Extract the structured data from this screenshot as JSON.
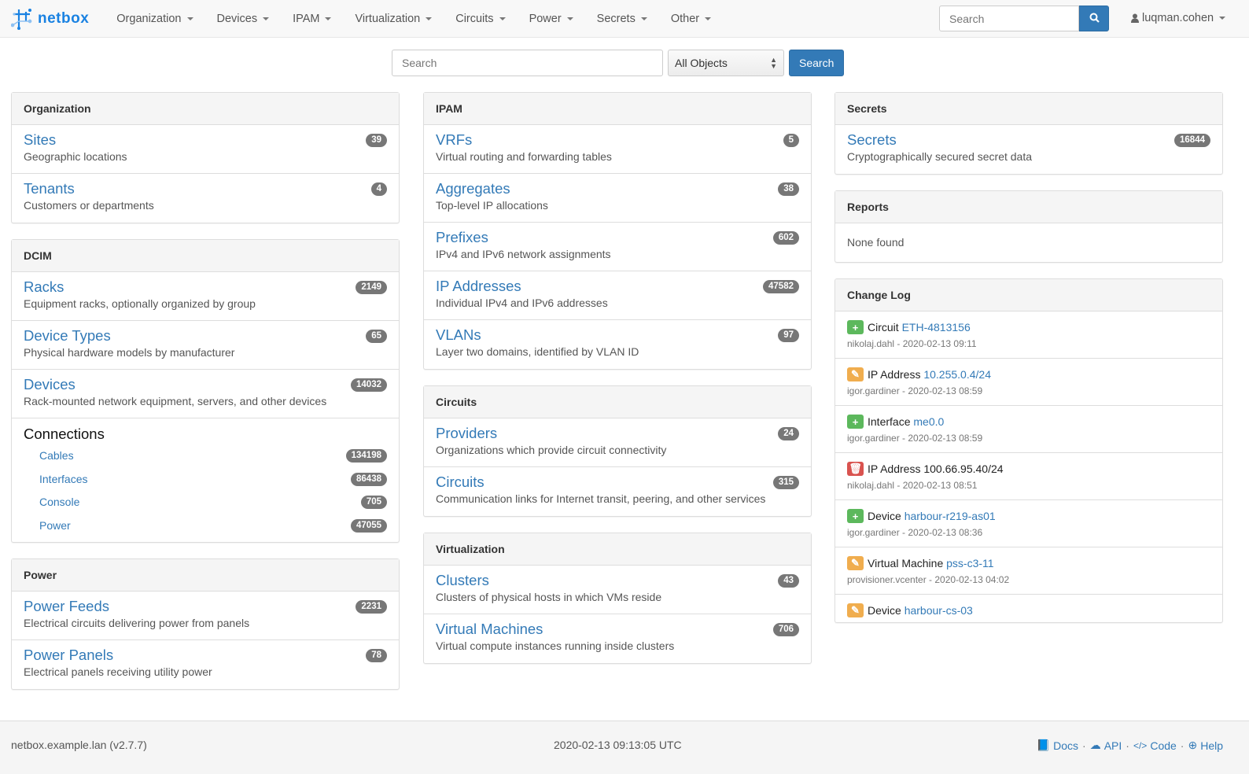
{
  "nav": {
    "brand": "netbox",
    "menu": [
      "Organization",
      "Devices",
      "IPAM",
      "Virtualization",
      "Circuits",
      "Power",
      "Secrets",
      "Other"
    ],
    "search_placeholder": "Search",
    "user": "luqman.cohen"
  },
  "search": {
    "placeholder": "Search",
    "select": "All Objects",
    "button": "Search"
  },
  "columns": [
    [
      {
        "title": "Organization",
        "items": [
          {
            "label": "Sites",
            "desc": "Geographic locations",
            "count": "39"
          },
          {
            "label": "Tenants",
            "desc": "Customers or departments",
            "count": "4"
          }
        ]
      },
      {
        "title": "DCIM",
        "items": [
          {
            "label": "Racks",
            "desc": "Equipment racks, optionally organized by group",
            "count": "2149"
          },
          {
            "label": "Device Types",
            "desc": "Physical hardware models by manufacturer",
            "count": "65"
          },
          {
            "label": "Devices",
            "desc": "Rack-mounted network equipment, servers, and other devices",
            "count": "14032"
          }
        ],
        "connections": {
          "title": "Connections",
          "items": [
            {
              "label": "Cables",
              "count": "134198"
            },
            {
              "label": "Interfaces",
              "count": "86438"
            },
            {
              "label": "Console",
              "count": "705"
            },
            {
              "label": "Power",
              "count": "47055"
            }
          ]
        }
      },
      {
        "title": "Power",
        "items": [
          {
            "label": "Power Feeds",
            "desc": "Electrical circuits delivering power from panels",
            "count": "2231"
          },
          {
            "label": "Power Panels",
            "desc": "Electrical panels receiving utility power",
            "count": "78"
          }
        ]
      }
    ],
    [
      {
        "title": "IPAM",
        "items": [
          {
            "label": "VRFs",
            "desc": "Virtual routing and forwarding tables",
            "count": "5"
          },
          {
            "label": "Aggregates",
            "desc": "Top-level IP allocations",
            "count": "38"
          },
          {
            "label": "Prefixes",
            "desc": "IPv4 and IPv6 network assignments",
            "count": "602"
          },
          {
            "label": "IP Addresses",
            "desc": "Individual IPv4 and IPv6 addresses",
            "count": "47582"
          },
          {
            "label": "VLANs",
            "desc": "Layer two domains, identified by VLAN ID",
            "count": "97"
          }
        ]
      },
      {
        "title": "Circuits",
        "items": [
          {
            "label": "Providers",
            "desc": "Organizations which provide circuit connectivity",
            "count": "24"
          },
          {
            "label": "Circuits",
            "desc": "Communication links for Internet transit, peering, and other services",
            "count": "315"
          }
        ]
      },
      {
        "title": "Virtualization",
        "items": [
          {
            "label": "Clusters",
            "desc": "Clusters of physical hosts in which VMs reside",
            "count": "43"
          },
          {
            "label": "Virtual Machines",
            "desc": "Virtual compute instances running inside clusters",
            "count": "706"
          }
        ]
      }
    ],
    [
      {
        "title": "Secrets",
        "items": [
          {
            "label": "Secrets",
            "desc": "Cryptographically secured secret data",
            "count": "16844"
          }
        ]
      },
      {
        "title": "Reports",
        "none": "None found"
      },
      {
        "title": "Change Log",
        "changes": [
          {
            "action": "create",
            "type": "Circuit",
            "object": "ETH-4813156",
            "linked": true,
            "meta": "nikolaj.dahl - 2020-02-13 09:11"
          },
          {
            "action": "update",
            "type": "IP Address",
            "object": "10.255.0.4/24",
            "linked": true,
            "meta": "igor.gardiner - 2020-02-13 08:59"
          },
          {
            "action": "create",
            "type": "Interface",
            "object": "me0.0",
            "linked": true,
            "meta": "igor.gardiner - 2020-02-13 08:59"
          },
          {
            "action": "delete",
            "type": "IP Address",
            "object": "100.66.95.40/24",
            "linked": false,
            "meta": "nikolaj.dahl - 2020-02-13 08:51"
          },
          {
            "action": "create",
            "type": "Device",
            "object": "harbour-r219-as01",
            "linked": true,
            "meta": "igor.gardiner - 2020-02-13 08:36"
          },
          {
            "action": "update",
            "type": "Virtual Machine",
            "object": "pss-c3-11",
            "linked": true,
            "meta": "provisioner.vcenter - 2020-02-13 04:02"
          },
          {
            "action": "update",
            "type": "Device",
            "object": "harbour-cs-03",
            "linked": true,
            "meta": ""
          }
        ]
      }
    ]
  ],
  "action_colors": {
    "create": "#5cb85c",
    "update": "#f0ad4e",
    "delete": "#d9534f"
  },
  "footer": {
    "host": "netbox.example.lan (v2.7.7)",
    "time": "2020-02-13 09:13:05 UTC",
    "links": [
      "Docs",
      "API",
      "Code",
      "Help"
    ]
  }
}
